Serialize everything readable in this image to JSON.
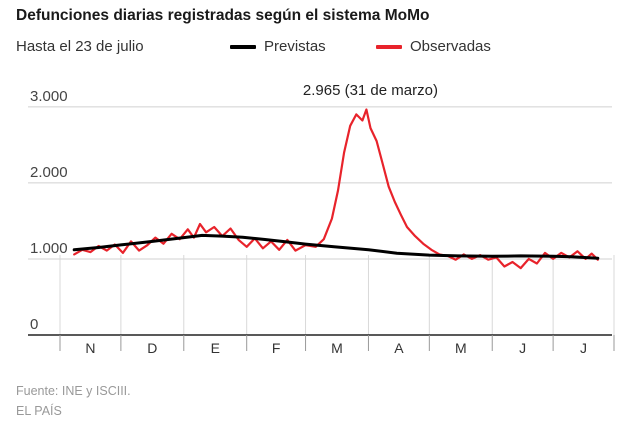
{
  "chart_data": {
    "type": "line",
    "title": "Defunciones diarias registradas según el sistema MoMo",
    "subtitle": "Hasta el 23 de julio",
    "y_ticks": [
      {
        "value": 0,
        "label": "0"
      },
      {
        "value": 1000,
        "label": "1.000"
      },
      {
        "value": 2000,
        "label": "2.000"
      },
      {
        "value": 3000,
        "label": "3.000"
      }
    ],
    "ylim": [
      0,
      3300
    ],
    "x_range": [
      "2019-11-01",
      "2020-07-31"
    ],
    "x_ticks": [
      {
        "date": "2019-11-01",
        "label": "N"
      },
      {
        "date": "2019-12-01",
        "label": "D"
      },
      {
        "date": "2020-01-01",
        "label": "E"
      },
      {
        "date": "2020-02-01",
        "label": "F"
      },
      {
        "date": "2020-03-01",
        "label": "M"
      },
      {
        "date": "2020-04-01",
        "label": "A"
      },
      {
        "date": "2020-05-01",
        "label": "M"
      },
      {
        "date": "2020-06-01",
        "label": "J"
      },
      {
        "date": "2020-07-01",
        "label": "J"
      }
    ],
    "annotation": {
      "label": "2.965 (31 de marzo)",
      "date": "2020-03-31",
      "value": 2965
    },
    "series": [
      {
        "name": "Previstas",
        "color": "#000000",
        "points": [
          [
            "2019-11-08",
            1120
          ],
          [
            "2019-11-20",
            1150
          ],
          [
            "2019-12-01",
            1185
          ],
          [
            "2019-12-15",
            1225
          ],
          [
            "2020-01-01",
            1280
          ],
          [
            "2020-01-10",
            1310
          ],
          [
            "2020-01-20",
            1300
          ],
          [
            "2020-01-30",
            1285
          ],
          [
            "2020-02-10",
            1255
          ],
          [
            "2020-02-20",
            1225
          ],
          [
            "2020-03-01",
            1195
          ],
          [
            "2020-03-15",
            1160
          ],
          [
            "2020-04-01",
            1120
          ],
          [
            "2020-04-15",
            1075
          ],
          [
            "2020-05-01",
            1050
          ],
          [
            "2020-05-15",
            1040
          ],
          [
            "2020-06-01",
            1035
          ],
          [
            "2020-06-15",
            1040
          ],
          [
            "2020-07-01",
            1035
          ],
          [
            "2020-07-10",
            1030
          ],
          [
            "2020-07-23",
            1010
          ]
        ]
      },
      {
        "name": "Observadas",
        "color": "#e8232b",
        "points": [
          [
            "2019-11-08",
            1060
          ],
          [
            "2019-11-12",
            1120
          ],
          [
            "2019-11-16",
            1090
          ],
          [
            "2019-11-20",
            1170
          ],
          [
            "2019-11-24",
            1110
          ],
          [
            "2019-11-28",
            1190
          ],
          [
            "2019-12-02",
            1080
          ],
          [
            "2019-12-06",
            1230
          ],
          [
            "2019-12-10",
            1110
          ],
          [
            "2019-12-14",
            1180
          ],
          [
            "2019-12-18",
            1280
          ],
          [
            "2019-12-22",
            1200
          ],
          [
            "2019-12-26",
            1330
          ],
          [
            "2019-12-30",
            1260
          ],
          [
            "2020-01-03",
            1390
          ],
          [
            "2020-01-06",
            1280
          ],
          [
            "2020-01-09",
            1460
          ],
          [
            "2020-01-12",
            1350
          ],
          [
            "2020-01-16",
            1420
          ],
          [
            "2020-01-20",
            1300
          ],
          [
            "2020-01-24",
            1400
          ],
          [
            "2020-01-28",
            1250
          ],
          [
            "2020-02-01",
            1160
          ],
          [
            "2020-02-05",
            1270
          ],
          [
            "2020-02-09",
            1140
          ],
          [
            "2020-02-13",
            1230
          ],
          [
            "2020-02-17",
            1120
          ],
          [
            "2020-02-21",
            1250
          ],
          [
            "2020-02-25",
            1110
          ],
          [
            "2020-03-01",
            1180
          ],
          [
            "2020-03-06",
            1160
          ],
          [
            "2020-03-10",
            1260
          ],
          [
            "2020-03-14",
            1530
          ],
          [
            "2020-03-17",
            1900
          ],
          [
            "2020-03-20",
            2400
          ],
          [
            "2020-03-23",
            2750
          ],
          [
            "2020-03-26",
            2900
          ],
          [
            "2020-03-29",
            2820
          ],
          [
            "2020-03-31",
            2965
          ],
          [
            "2020-04-02",
            2720
          ],
          [
            "2020-04-05",
            2550
          ],
          [
            "2020-04-08",
            2250
          ],
          [
            "2020-04-11",
            1950
          ],
          [
            "2020-04-14",
            1750
          ],
          [
            "2020-04-17",
            1580
          ],
          [
            "2020-04-20",
            1420
          ],
          [
            "2020-04-24",
            1300
          ],
          [
            "2020-04-28",
            1200
          ],
          [
            "2020-05-02",
            1120
          ],
          [
            "2020-05-06",
            1060
          ],
          [
            "2020-05-10",
            1040
          ],
          [
            "2020-05-14",
            990
          ],
          [
            "2020-05-18",
            1060
          ],
          [
            "2020-05-22",
            1000
          ],
          [
            "2020-05-26",
            1050
          ],
          [
            "2020-05-30",
            990
          ],
          [
            "2020-06-03",
            1020
          ],
          [
            "2020-06-07",
            900
          ],
          [
            "2020-06-11",
            960
          ],
          [
            "2020-06-15",
            880
          ],
          [
            "2020-06-19",
            1000
          ],
          [
            "2020-06-23",
            940
          ],
          [
            "2020-06-27",
            1080
          ],
          [
            "2020-07-01",
            1000
          ],
          [
            "2020-07-05",
            1080
          ],
          [
            "2020-07-09",
            1020
          ],
          [
            "2020-07-13",
            1100
          ],
          [
            "2020-07-17",
            1000
          ],
          [
            "2020-07-20",
            1070
          ],
          [
            "2020-07-23",
            990
          ]
        ]
      }
    ]
  },
  "footer": {
    "source": "Fuente: INE y ISCIII.",
    "brand": "EL PAÍS"
  }
}
